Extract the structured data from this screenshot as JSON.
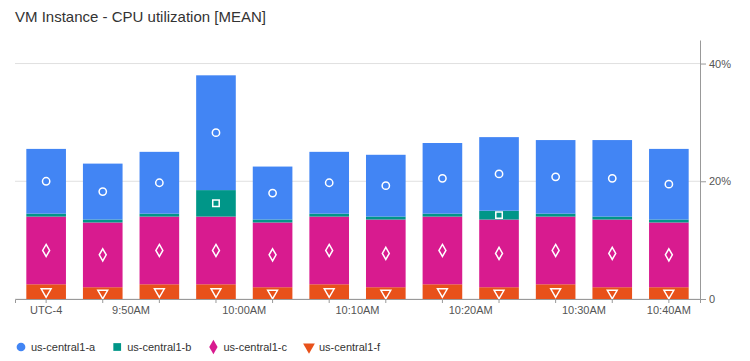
{
  "chart_data": {
    "type": "bar",
    "title": "VM Instance - CPU utilization [MEAN]",
    "categories": [
      "UTC-4",
      "9:50AM",
      null,
      "10:00AM",
      null,
      "10:10AM",
      null,
      "10:20AM",
      null,
      "10:30AM",
      null,
      "10:40AM"
    ],
    "series": [
      {
        "name": "us-central1-f",
        "color": "#e8511a",
        "marker": "triangle-down",
        "values": [
          2.5,
          2.0,
          2.5,
          2.5,
          2.0,
          2.5,
          2.0,
          2.5,
          2.0,
          2.5,
          2.0,
          2.0
        ]
      },
      {
        "name": "us-central1-c",
        "color": "#d81b8f",
        "marker": "diamond",
        "values": [
          11.5,
          11.0,
          11.5,
          11.5,
          11.0,
          11.5,
          11.5,
          11.5,
          11.5,
          11.5,
          11.5,
          11.0
        ]
      },
      {
        "name": "us-central1-b",
        "color": "#009688",
        "marker": "square",
        "values": [
          0.5,
          0.5,
          0.5,
          4.5,
          0.5,
          0.5,
          0.5,
          0.5,
          1.5,
          0.5,
          0.5,
          0.5
        ]
      },
      {
        "name": "us-central1-a",
        "color": "#4285f4",
        "marker": "circle",
        "values": [
          11.0,
          9.5,
          10.5,
          19.5,
          9.0,
          10.5,
          10.5,
          12.0,
          12.5,
          12.5,
          13.0,
          12.0
        ]
      }
    ],
    "stacked": true,
    "ylim": [
      0,
      44
    ],
    "yticks": [
      0,
      {
        "value": 20,
        "label": "20%"
      },
      {
        "value": 40,
        "label": "40%"
      }
    ],
    "grid": true,
    "legend": "bottom"
  }
}
